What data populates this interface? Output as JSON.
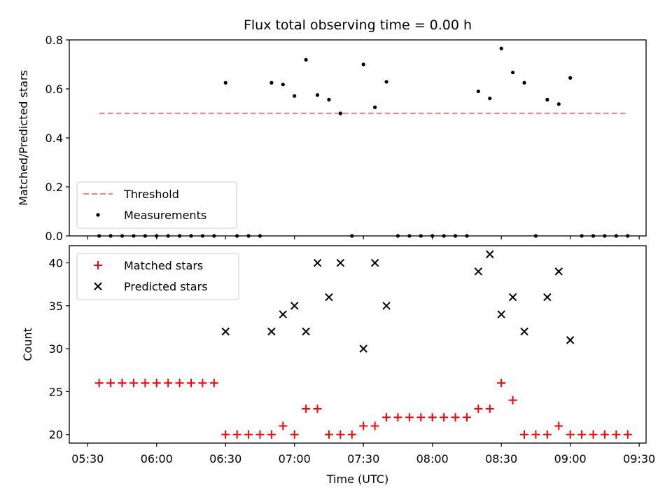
{
  "chart_data": [
    {
      "type": "scatter",
      "title": "Flux total observing time = 0.00 h",
      "xlabel": "",
      "ylabel": "Matched/Predicted stars",
      "ylim": [
        0,
        0.8
      ],
      "yticks": [
        "0.0",
        "0.2",
        "0.4",
        "0.6",
        "0.8"
      ],
      "xlim_minutes": [
        322,
        573
      ],
      "threshold": {
        "name": "Threshold",
        "value": 0.5,
        "x_start": "05:35",
        "x_end": "09:25",
        "color": "#ff7f7f"
      },
      "series": [
        {
          "name": "Measurements",
          "color": "#000000",
          "x": [
            "05:35",
            "05:40",
            "05:45",
            "05:50",
            "05:55",
            "06:00",
            "06:05",
            "06:10",
            "06:15",
            "06:20",
            "06:25",
            "06:30",
            "06:35",
            "06:40",
            "06:45",
            "06:50",
            "06:55",
            "07:00",
            "07:05",
            "07:10",
            "07:15",
            "07:20",
            "07:25",
            "07:30",
            "07:35",
            "07:40",
            "07:45",
            "07:50",
            "07:55",
            "08:00",
            "08:05",
            "08:10",
            "08:15",
            "08:20",
            "08:25",
            "08:30",
            "08:35",
            "08:40",
            "08:45",
            "08:50",
            "08:55",
            "09:00",
            "09:05",
            "09:10",
            "09:15",
            "09:20",
            "09:25"
          ],
          "y": [
            0,
            0,
            0,
            0,
            0,
            0,
            0,
            0,
            0,
            0,
            0,
            0.625,
            0,
            0,
            0,
            0.625,
            0.618,
            0.571,
            0.719,
            0.575,
            0.556,
            0.5,
            0,
            0.7,
            0.525,
            0.629,
            0,
            0,
            0,
            0,
            0,
            0,
            0,
            0.59,
            0.561,
            0.765,
            0.667,
            0.625,
            0,
            0.556,
            0.538,
            0.645,
            0,
            0,
            0,
            0,
            0
          ]
        }
      ],
      "legend": {
        "placement": "lower-left",
        "entries": [
          "Threshold",
          "Measurements"
        ]
      }
    },
    {
      "type": "scatter",
      "title": "",
      "xlabel": "Time (UTC)",
      "ylabel": "Count",
      "ylim": [
        19,
        42
      ],
      "yticks": [
        "20",
        "25",
        "30",
        "35",
        "40"
      ],
      "xticks": [
        "05:30",
        "06:00",
        "06:30",
        "07:00",
        "07:30",
        "08:00",
        "08:30",
        "09:00",
        "09:30"
      ],
      "series": [
        {
          "name": "Matched stars",
          "marker": "plus",
          "color": "#ff0000",
          "x": [
            "05:35",
            "05:40",
            "05:45",
            "05:50",
            "05:55",
            "06:00",
            "06:05",
            "06:10",
            "06:15",
            "06:20",
            "06:25",
            "06:30",
            "06:35",
            "06:40",
            "06:45",
            "06:50",
            "06:55",
            "07:00",
            "07:05",
            "07:10",
            "07:15",
            "07:20",
            "07:25",
            "07:30",
            "07:35",
            "07:40",
            "07:45",
            "07:50",
            "07:55",
            "08:00",
            "08:05",
            "08:10",
            "08:15",
            "08:20",
            "08:25",
            "08:30",
            "08:35",
            "08:40",
            "08:45",
            "08:50",
            "08:55",
            "09:00",
            "09:05",
            "09:10",
            "09:15",
            "09:20",
            "09:25"
          ],
          "y": [
            26,
            26,
            26,
            26,
            26,
            26,
            26,
            26,
            26,
            26,
            26,
            20,
            20,
            20,
            20,
            20,
            21,
            20,
            23,
            23,
            20,
            20,
            20,
            21,
            21,
            22,
            22,
            22,
            22,
            22,
            22,
            22,
            22,
            23,
            23,
            26,
            24,
            20,
            20,
            20,
            21,
            20,
            20,
            20,
            20,
            20,
            20
          ]
        },
        {
          "name": "Predicted stars",
          "marker": "x",
          "color": "#000000",
          "x": [
            "06:30",
            "06:50",
            "06:55",
            "07:00",
            "07:05",
            "07:10",
            "07:15",
            "07:20",
            "07:30",
            "07:35",
            "07:40",
            "08:20",
            "08:25",
            "08:30",
            "08:35",
            "08:40",
            "08:50",
            "08:55",
            "09:00"
          ],
          "y": [
            32,
            32,
            34,
            35,
            32,
            40,
            36,
            40,
            30,
            40,
            35,
            39,
            41,
            34,
            36,
            32,
            36,
            39,
            31
          ]
        }
      ],
      "legend": {
        "placement": "upper-left",
        "entries": [
          "Matched stars",
          "Predicted stars"
        ]
      }
    }
  ]
}
